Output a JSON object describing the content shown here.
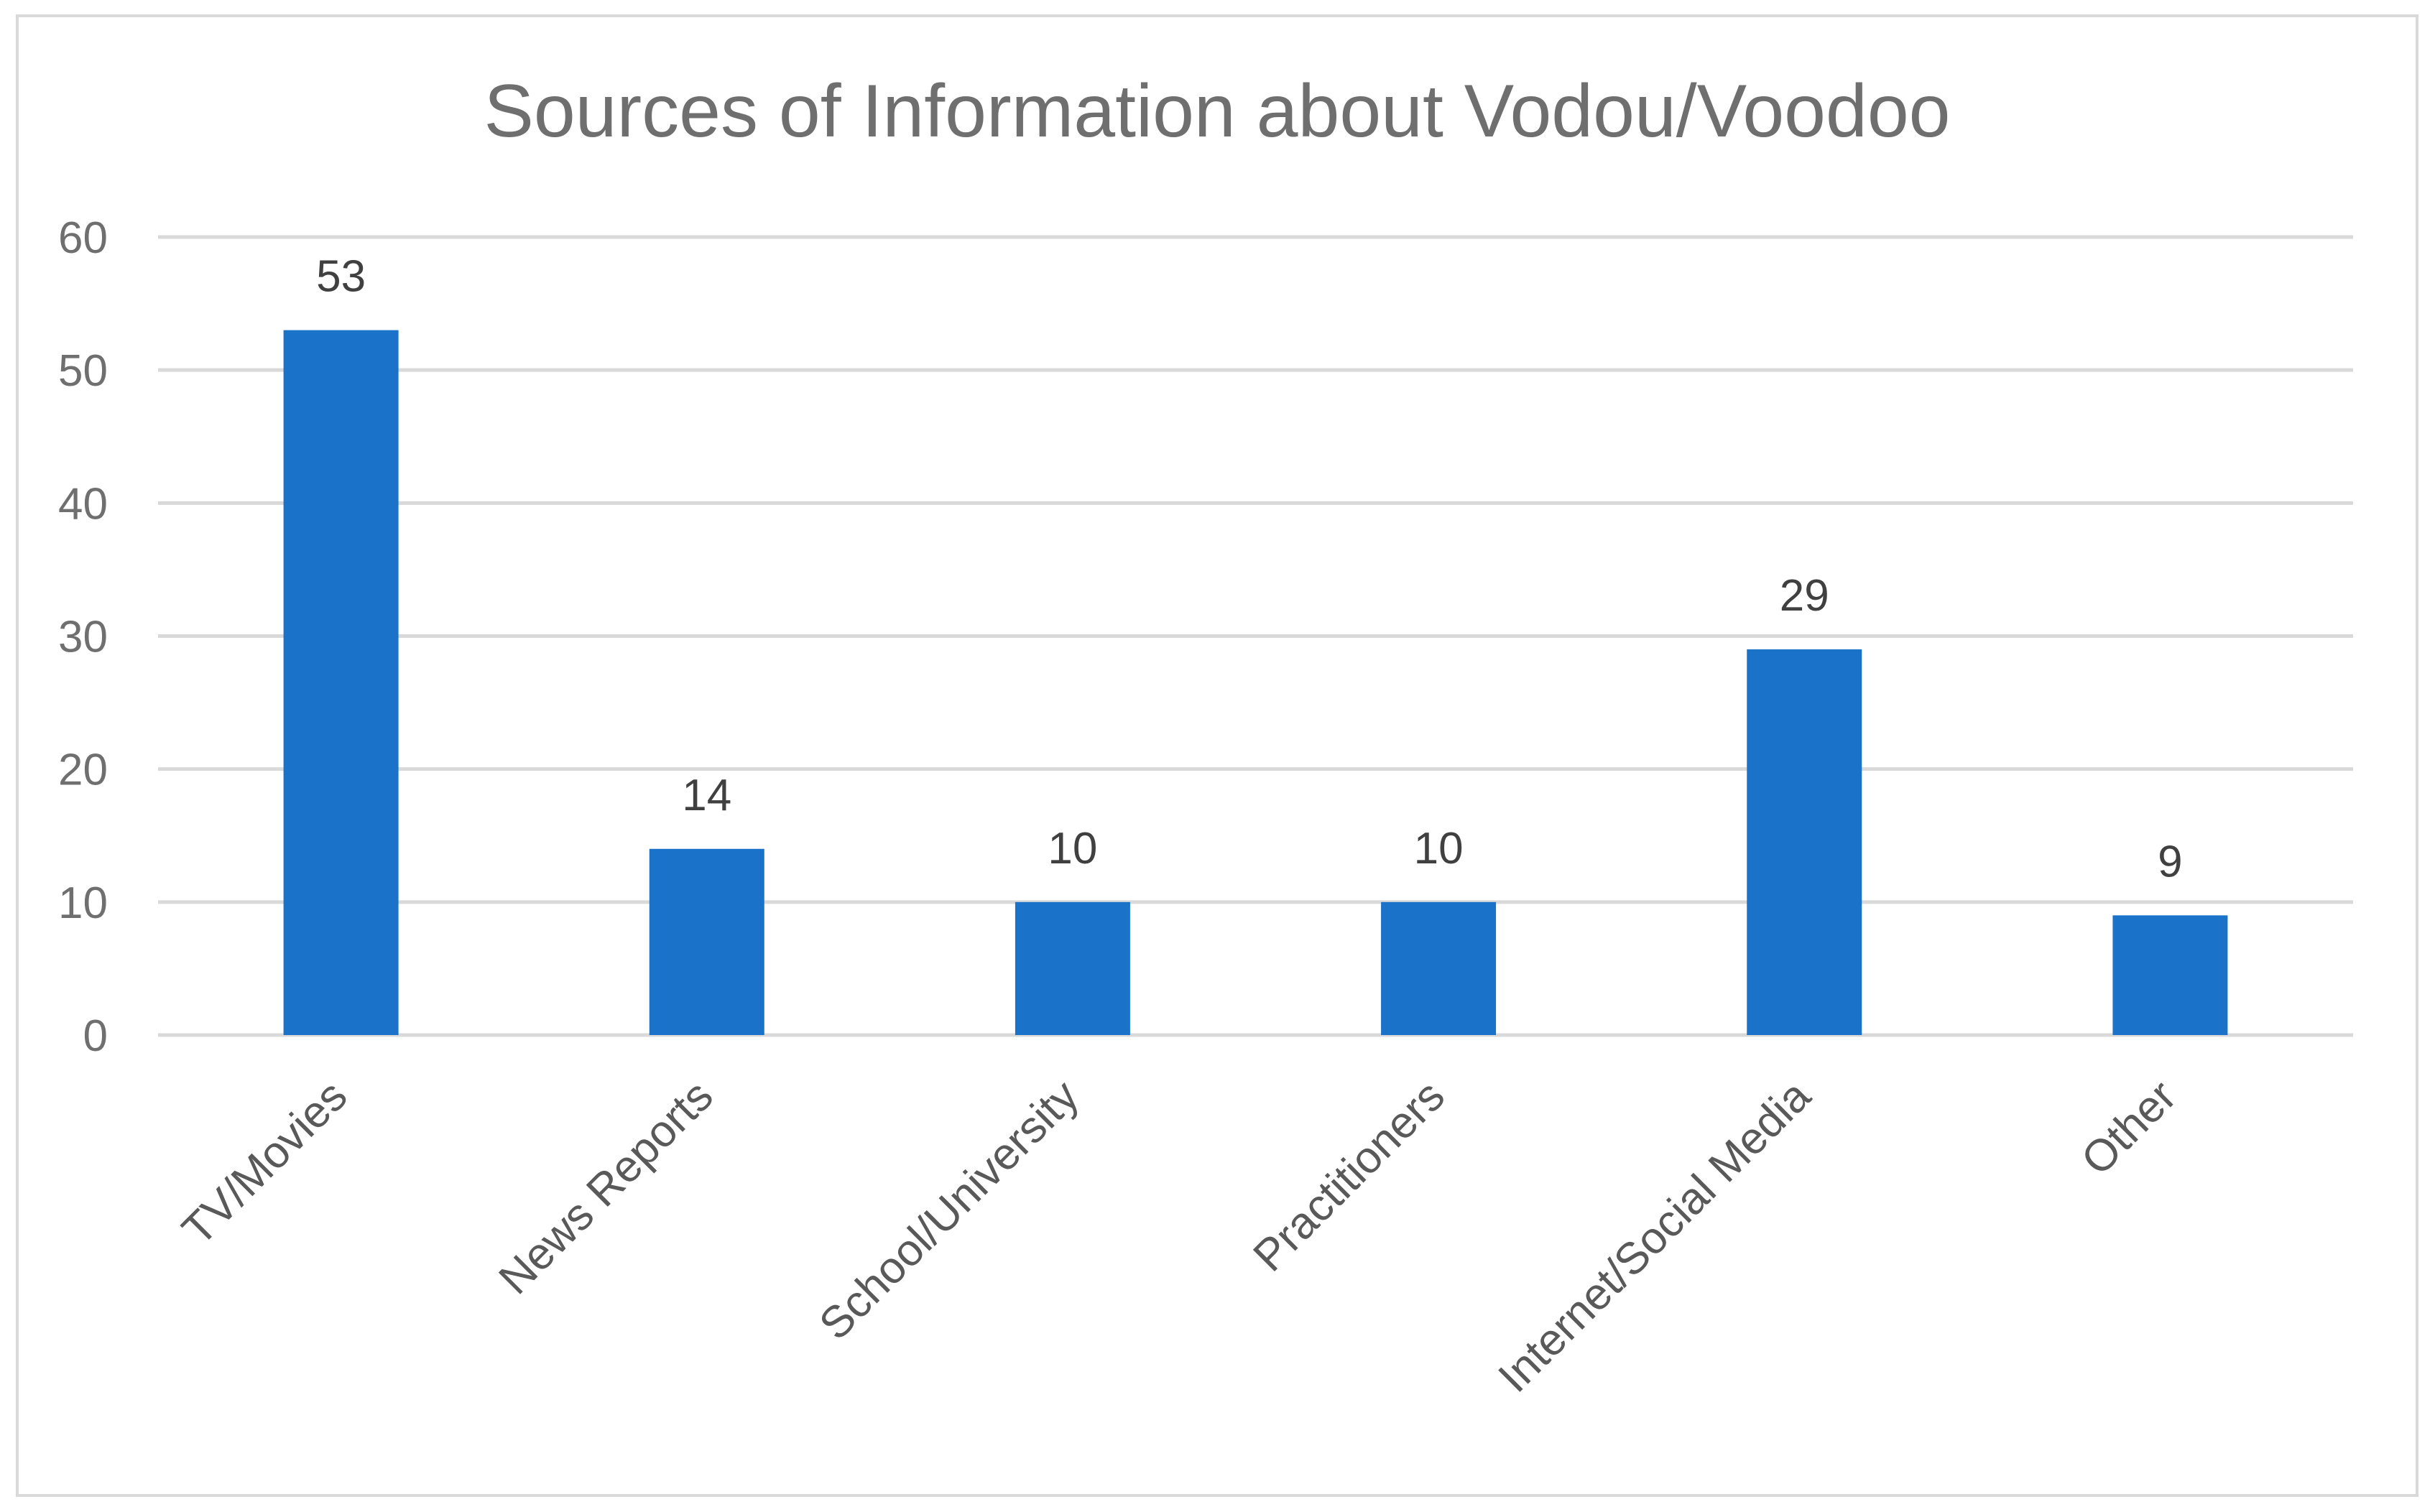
{
  "chart_data": {
    "type": "bar",
    "title": "Sources of Information about Vodou/Voodoo",
    "xlabel": "",
    "ylabel": "",
    "categories": [
      "TV/Movies",
      "News Reports",
      "School/University",
      "Practitioners",
      "Internet/Social Media",
      "Other"
    ],
    "values": [
      53,
      14,
      10,
      10,
      29,
      9
    ],
    "ylim": [
      0,
      60
    ],
    "yticks": [
      0,
      10,
      20,
      30,
      40,
      50,
      60
    ],
    "grid": true,
    "legend": "none",
    "bar_color": "#1a73c8"
  }
}
